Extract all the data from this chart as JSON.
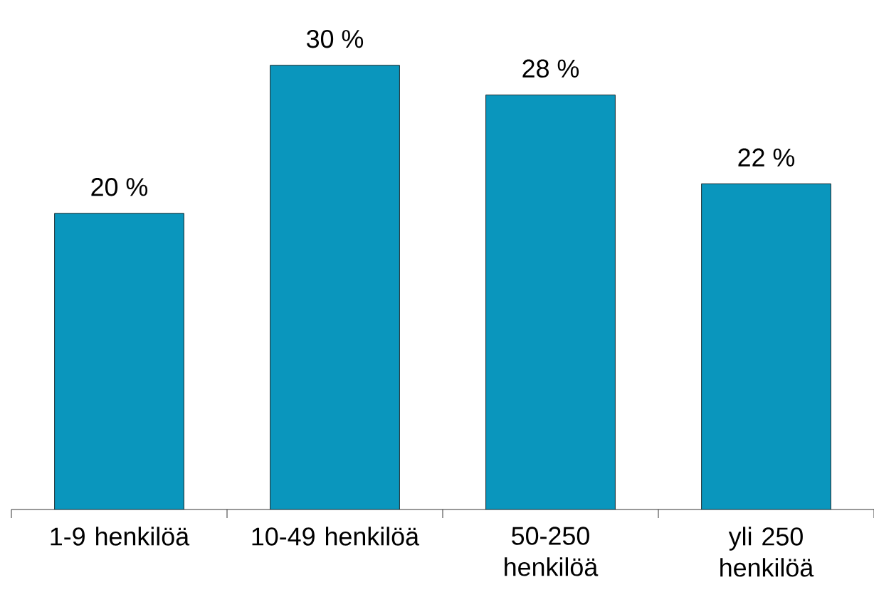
{
  "chart_data": {
    "type": "bar",
    "categories": [
      "1-9 henkilöä",
      "10-49 henkilöä",
      "50-250 henkilöä",
      "yli 250 henkilöä"
    ],
    "values": [
      20,
      30,
      28,
      22
    ],
    "value_labels": [
      "20 %",
      "30 %",
      "28 %",
      "22 %"
    ],
    "color": "#0a96bd"
  }
}
